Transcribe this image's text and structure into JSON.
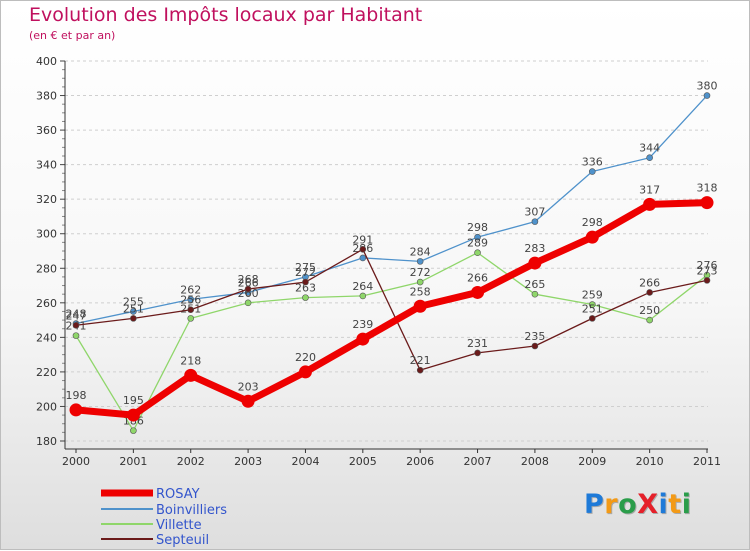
{
  "title": "Evolution des Impôts locaux par Habitant",
  "subtitle": "(en € et par an)",
  "logo_text": "ProXiti",
  "logo_colors": [
    "#1e7ad8",
    "#f39a16",
    "#2a9d4a",
    "#e5202a",
    "#1e7ad8",
    "#f39a16",
    "#2a9d4a"
  ],
  "chart_data": {
    "type": "line",
    "title": "Evolution des Impôts locaux par Habitant",
    "subtitle": "(en € et par an)",
    "x": [
      "2000",
      "2001",
      "2002",
      "2003",
      "2004",
      "2005",
      "2006",
      "2007",
      "2008",
      "2009",
      "2010",
      "2011"
    ],
    "ylim": [
      180,
      400
    ],
    "yticks": [
      180,
      200,
      220,
      240,
      260,
      280,
      300,
      320,
      340,
      360,
      380,
      400
    ],
    "xlabel": "",
    "ylabel": "",
    "grid": "horizontal dashed",
    "legend": "bottom-left",
    "series": [
      {
        "name": "ROSAY",
        "color": "#ee0000",
        "values": [
          198,
          195,
          218,
          203,
          220,
          239,
          258,
          266,
          283,
          298,
          317,
          318
        ],
        "labels": [
          "198",
          "195",
          "218",
          "203",
          "220",
          "239",
          "258",
          "266",
          "283",
          "298",
          "317",
          "318"
        ]
      },
      {
        "name": "Boinvilliers",
        "color": "#4f92cb",
        "values": [
          248,
          255,
          262,
          266,
          275,
          286,
          284,
          298,
          307,
          336,
          344,
          380
        ],
        "labels": [
          "248",
          "255",
          "262",
          "266",
          "275",
          "286",
          "284",
          "298",
          "307",
          "336",
          "344",
          "380"
        ]
      },
      {
        "name": "Villette",
        "color": "#8fd66a",
        "values": [
          241,
          186,
          251,
          260,
          263,
          264,
          272,
          289,
          265,
          259,
          250,
          276
        ],
        "labels": [
          "241",
          "186",
          "251",
          "260",
          "263",
          "264",
          "272",
          "289",
          "265",
          "259",
          "250",
          "276"
        ]
      },
      {
        "name": "Septeuil",
        "color": "#6b1b1b",
        "values": [
          247,
          251,
          256,
          268,
          272,
          291,
          221,
          231,
          235,
          251,
          266,
          273
        ],
        "labels": [
          "247",
          "251",
          "256",
          "268",
          "272",
          "291",
          "221",
          "231",
          "235",
          "251",
          "266",
          "273"
        ]
      }
    ]
  }
}
